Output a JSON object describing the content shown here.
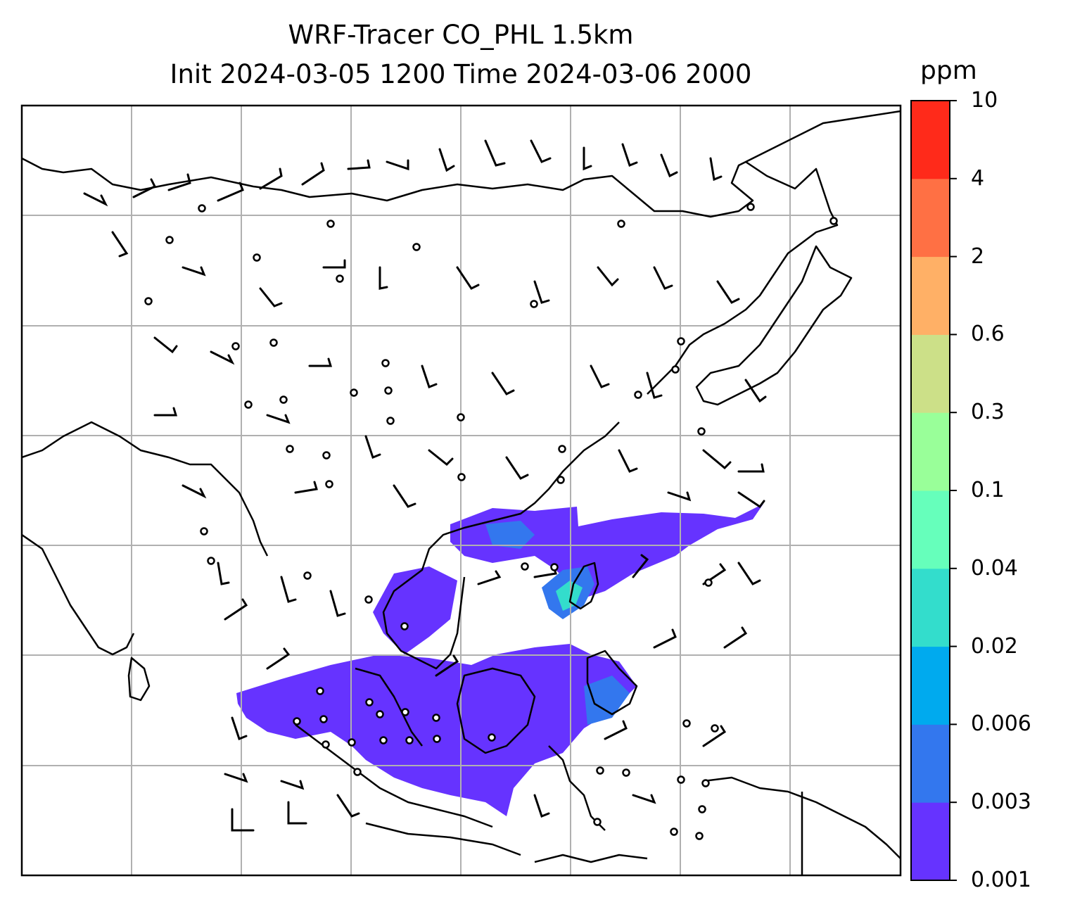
{
  "title": {
    "line1": "WRF-Tracer CO_PHL 1.5km",
    "line2": "Init 2024-03-05 1200 Time 2024-03-06 2000"
  },
  "colorbar": {
    "unit": "ppm",
    "ticks": [
      "0.001",
      "0.003",
      "0.006",
      "0.02",
      "0.04",
      "0.1",
      "0.3",
      "0.6",
      "2",
      "4",
      "10"
    ],
    "colors": [
      "#6633ff",
      "#3377ee",
      "#00aaee",
      "#33ddcc",
      "#66ffbb",
      "#99ff99",
      "#cce088",
      "#ffb066",
      "#ff7044",
      "#ff2a1a"
    ]
  },
  "map": {
    "background": "#ffffff",
    "coastline_color": "#000000",
    "gridline_color": "#b0b0b0"
  }
}
